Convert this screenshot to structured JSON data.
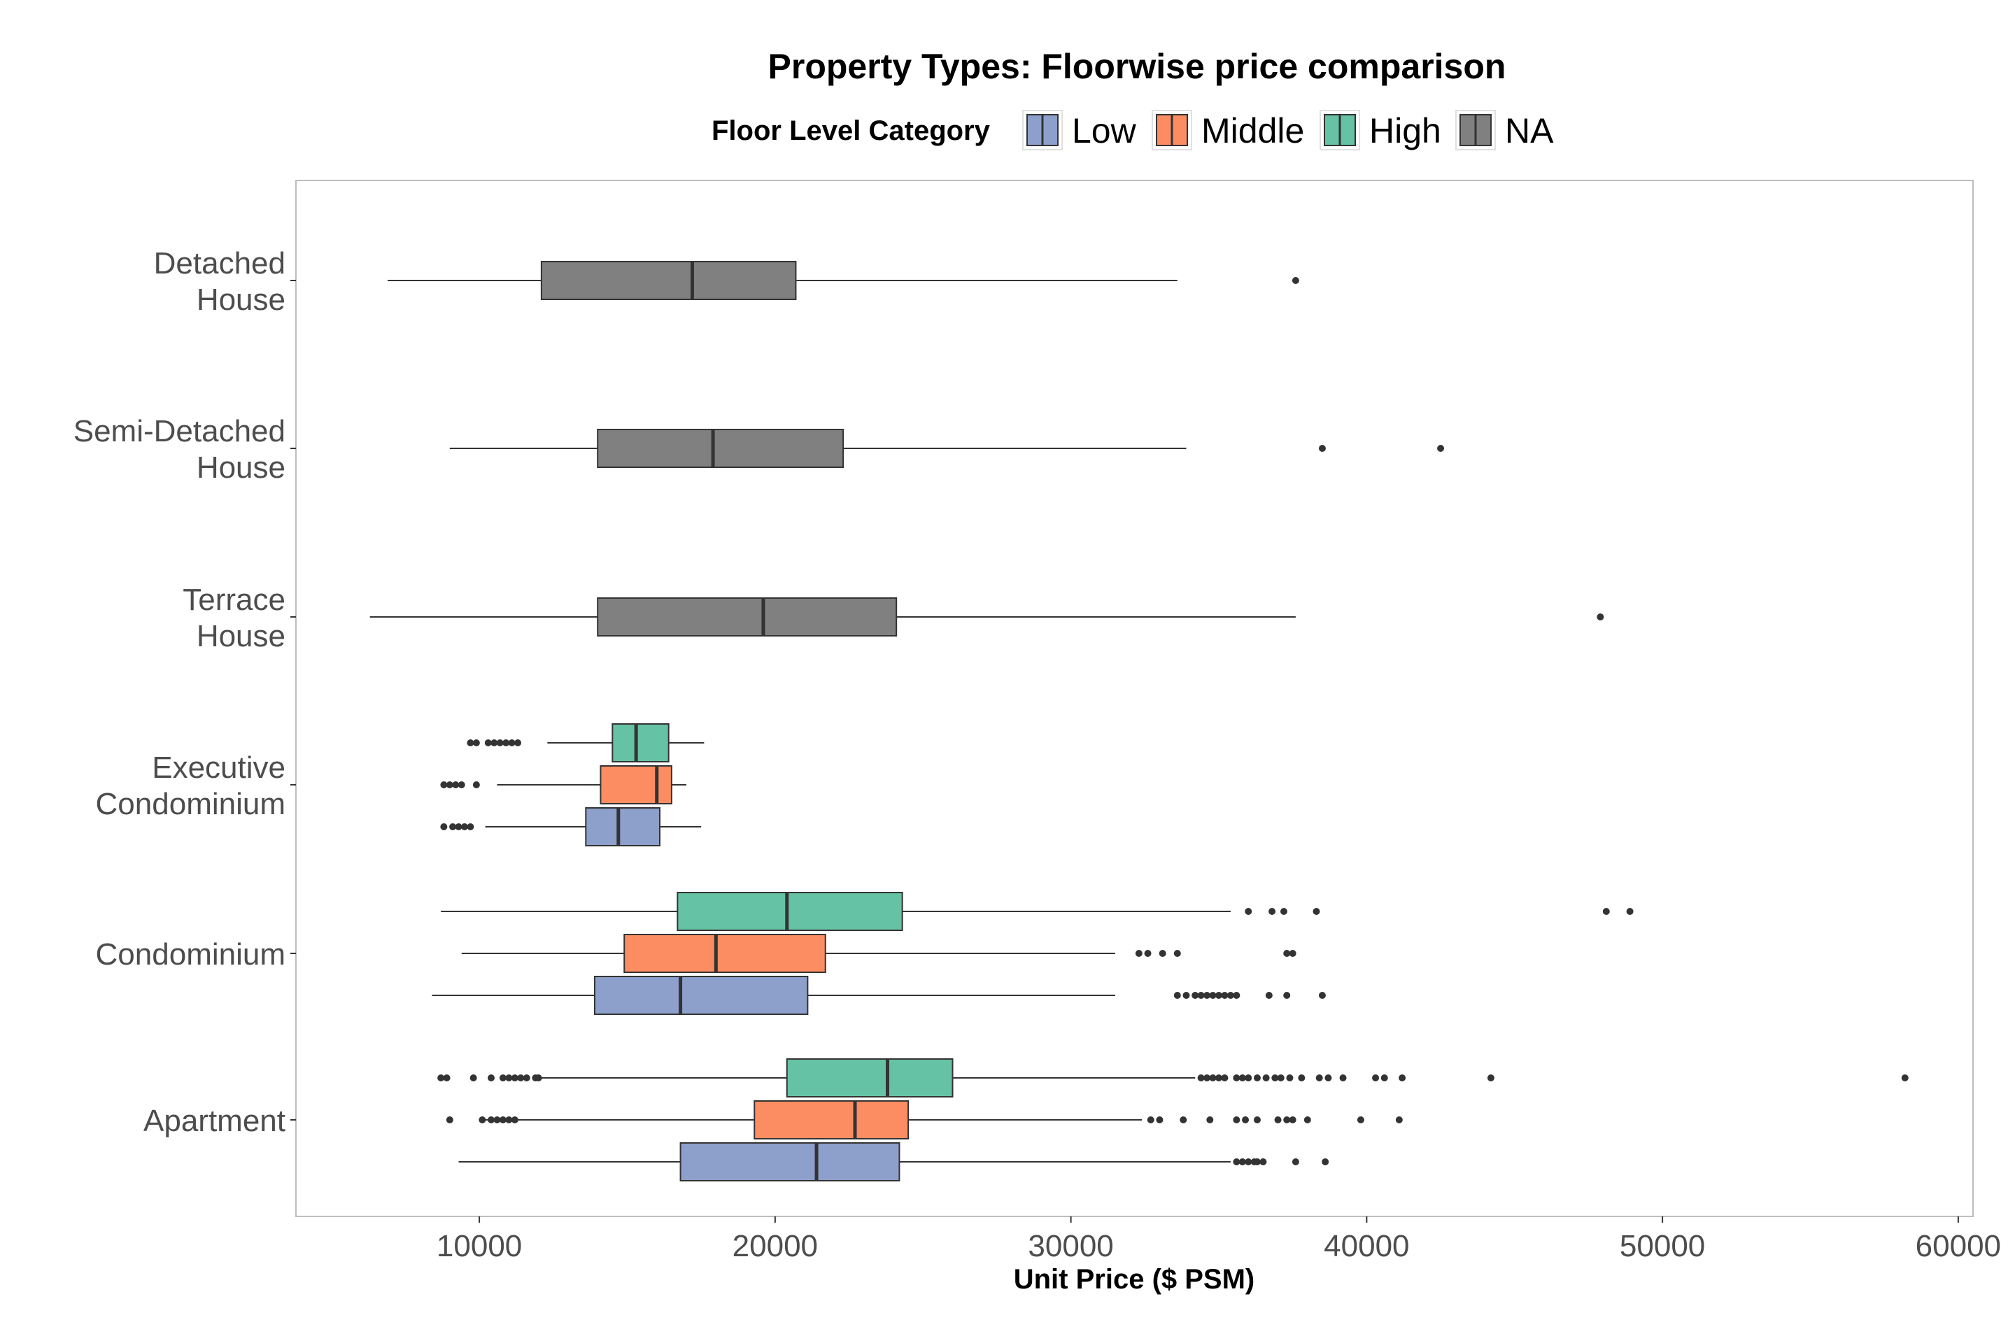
{
  "chart_data": {
    "type": "boxplot",
    "title": "Property Types: Floorwise price comparison",
    "xlabel": "Unit Price ($ PSM)",
    "ylabel": "",
    "xlim": [
      3800,
      60500
    ],
    "x_ticks": [
      "10000",
      "20000",
      "30000",
      "40000",
      "50000",
      "60000"
    ],
    "x_tick_values": [
      10000,
      20000,
      30000,
      40000,
      50000,
      60000
    ],
    "orientation": "horizontal",
    "grid": false,
    "legend": {
      "title": "Floor Level Category",
      "placement": "top",
      "items": [
        {
          "name": "Low",
          "color": "#8DA0CB"
        },
        {
          "name": "Middle",
          "color": "#FC8D62"
        },
        {
          "name": "High",
          "color": "#66C2A5"
        },
        {
          "name": "NA",
          "color": "#808080"
        }
      ]
    },
    "categories": [
      {
        "label_lines": [
          "Apartment"
        ]
      },
      {
        "label_lines": [
          "Condominium"
        ]
      },
      {
        "label_lines": [
          "Executive",
          "Condominium"
        ]
      },
      {
        "label_lines": [
          "Terrace",
          "House"
        ]
      },
      {
        "label_lines": [
          "Semi-Detached",
          "House"
        ]
      },
      {
        "label_lines": [
          "Detached",
          "House"
        ]
      }
    ],
    "series": [
      {
        "category": 0,
        "group": "Low",
        "min": 9300,
        "q1": 16800,
        "median": 21400,
        "q3": 24200,
        "max": 35400,
        "outliers": [
          35600,
          35800,
          36000,
          36200,
          36300,
          36500,
          37600,
          38600
        ]
      },
      {
        "category": 0,
        "group": "Middle",
        "min": 10000,
        "q1": 19300,
        "median": 22700,
        "q3": 24500,
        "max": 32400,
        "outliers": [
          9000,
          10100,
          10400,
          10600,
          10800,
          11000,
          11200,
          32700,
          33000,
          33800,
          34700,
          35600,
          35900,
          36300,
          37000,
          37300,
          37500,
          38000,
          39800,
          41100
        ]
      },
      {
        "category": 0,
        "group": "High",
        "min": 12100,
        "q1": 20400,
        "median": 23800,
        "q3": 26000,
        "max": 34200,
        "outliers": [
          8700,
          8900,
          9800,
          10400,
          10800,
          11000,
          11200,
          11400,
          11600,
          11900,
          12000,
          34400,
          34600,
          34800,
          35000,
          35200,
          35600,
          35800,
          36000,
          36300,
          36600,
          36900,
          37100,
          37400,
          37800,
          38400,
          38700,
          39200,
          40300,
          40600,
          41200,
          44200,
          58200
        ]
      },
      {
        "category": 1,
        "group": "Low",
        "min": 8400,
        "q1": 13900,
        "median": 16800,
        "q3": 21100,
        "max": 31500,
        "outliers": [
          33600,
          33900,
          34200,
          34400,
          34600,
          34800,
          35000,
          35200,
          35400,
          35600,
          36700,
          37300,
          38500
        ]
      },
      {
        "category": 1,
        "group": "Middle",
        "min": 9400,
        "q1": 14900,
        "median": 18000,
        "q3": 21700,
        "max": 31500,
        "outliers": [
          32300,
          32600,
          33100,
          33600,
          37300,
          37500
        ]
      },
      {
        "category": 1,
        "group": "High",
        "min": 8700,
        "q1": 16700,
        "median": 20400,
        "q3": 24300,
        "max": 35400,
        "outliers": [
          36000,
          36800,
          37200,
          38300,
          48100,
          48900
        ]
      },
      {
        "category": 2,
        "group": "Low",
        "min": 10200,
        "q1": 13600,
        "median": 14700,
        "q3": 16100,
        "max": 17500,
        "outliers": [
          8800,
          9100,
          9300,
          9500,
          9700
        ]
      },
      {
        "category": 2,
        "group": "Middle",
        "min": 10600,
        "q1": 14100,
        "median": 16000,
        "q3": 16500,
        "max": 17000,
        "outliers": [
          8800,
          9000,
          9200,
          9400,
          9900
        ]
      },
      {
        "category": 2,
        "group": "High",
        "min": 12300,
        "q1": 14500,
        "median": 15300,
        "q3": 16400,
        "max": 17600,
        "outliers": [
          9700,
          9900,
          10300,
          10500,
          10700,
          10900,
          11100,
          11300
        ]
      },
      {
        "category": 3,
        "group": "NA",
        "min": 6300,
        "q1": 14000,
        "median": 19600,
        "q3": 24100,
        "max": 37600,
        "outliers": [
          47900
        ]
      },
      {
        "category": 4,
        "group": "NA",
        "min": 9000,
        "q1": 14000,
        "median": 17900,
        "q3": 22300,
        "max": 33900,
        "outliers": [
          38500,
          42500
        ]
      },
      {
        "category": 5,
        "group": "NA",
        "min": 6900,
        "q1": 12100,
        "median": 17200,
        "q3": 20700,
        "max": 33600,
        "outliers": [
          37600
        ]
      }
    ]
  }
}
